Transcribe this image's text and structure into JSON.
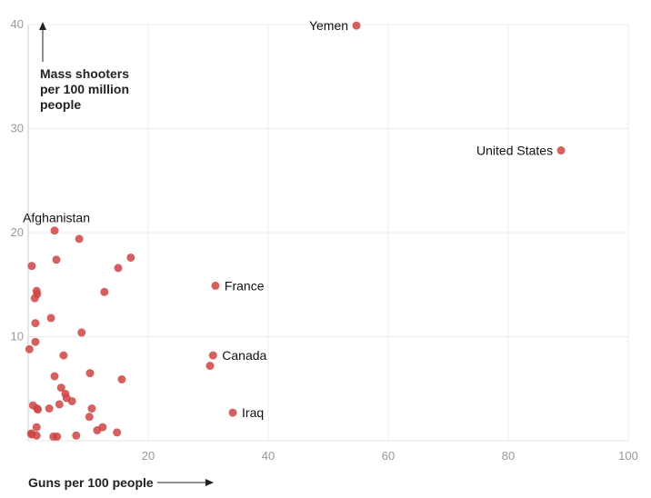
{
  "chart_data": {
    "type": "scatter",
    "xlabel": "Guns per 100 people",
    "ylabel_lines": [
      "Mass shooters",
      "per 100 million",
      "people"
    ],
    "xlim": [
      0,
      100
    ],
    "ylim": [
      0,
      40
    ],
    "xticks": [
      20,
      40,
      60,
      80,
      100
    ],
    "yticks": [
      10,
      20,
      30,
      40
    ],
    "grid": true,
    "color": "#cc4444",
    "points": [
      {
        "x": 54.7,
        "y": 39.9,
        "label": "Yemen",
        "anchor": "left"
      },
      {
        "x": 88.8,
        "y": 27.9,
        "label": "United States",
        "anchor": "left"
      },
      {
        "x": 4.4,
        "y": 20.2,
        "label": "Afghanistan",
        "anchor": "above"
      },
      {
        "x": 31.2,
        "y": 14.9,
        "label": "France",
        "anchor": "right"
      },
      {
        "x": 30.8,
        "y": 8.2,
        "label": "Canada",
        "anchor": "right"
      },
      {
        "x": 34.1,
        "y": 2.7,
        "label": "Iraq",
        "anchor": "right"
      },
      {
        "x": 8.5,
        "y": 19.4
      },
      {
        "x": 0.6,
        "y": 16.8
      },
      {
        "x": 4.7,
        "y": 17.4
      },
      {
        "x": 17.1,
        "y": 17.6
      },
      {
        "x": 15.0,
        "y": 16.6
      },
      {
        "x": 1.4,
        "y": 14.4
      },
      {
        "x": 1.5,
        "y": 14.1
      },
      {
        "x": 1.1,
        "y": 13.7
      },
      {
        "x": 12.7,
        "y": 14.3
      },
      {
        "x": 3.8,
        "y": 11.8
      },
      {
        "x": 1.2,
        "y": 11.3
      },
      {
        "x": 8.9,
        "y": 10.4
      },
      {
        "x": 1.2,
        "y": 9.5
      },
      {
        "x": 0.2,
        "y": 8.8
      },
      {
        "x": 5.9,
        "y": 8.2
      },
      {
        "x": 30.3,
        "y": 7.2
      },
      {
        "x": 4.4,
        "y": 6.2
      },
      {
        "x": 10.3,
        "y": 6.5
      },
      {
        "x": 15.6,
        "y": 5.9
      },
      {
        "x": 5.5,
        "y": 5.1
      },
      {
        "x": 6.2,
        "y": 4.5
      },
      {
        "x": 6.4,
        "y": 4.1
      },
      {
        "x": 7.3,
        "y": 3.8
      },
      {
        "x": 5.2,
        "y": 3.5
      },
      {
        "x": 0.8,
        "y": 3.4
      },
      {
        "x": 1.5,
        "y": 3.1
      },
      {
        "x": 1.6,
        "y": 3.0
      },
      {
        "x": 3.5,
        "y": 3.1
      },
      {
        "x": 10.6,
        "y": 3.1
      },
      {
        "x": 10.2,
        "y": 2.3
      },
      {
        "x": 1.4,
        "y": 1.3
      },
      {
        "x": 12.4,
        "y": 1.3
      },
      {
        "x": 11.5,
        "y": 1.0
      },
      {
        "x": 14.8,
        "y": 0.8
      },
      {
        "x": 0.5,
        "y": 0.7
      },
      {
        "x": 0.6,
        "y": 0.6
      },
      {
        "x": 1.4,
        "y": 0.5
      },
      {
        "x": 4.2,
        "y": 0.4
      },
      {
        "x": 4.8,
        "y": 0.4
      },
      {
        "x": 8.0,
        "y": 0.5
      }
    ]
  }
}
